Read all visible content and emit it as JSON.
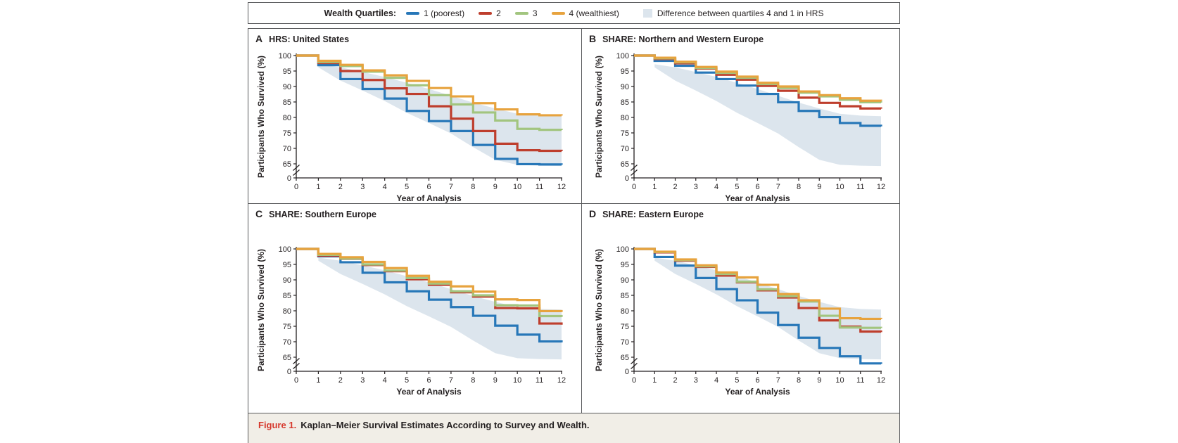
{
  "figure_caption": {
    "label": "Figure 1.",
    "text": "Kaplan–Meier Survival Estimates According to Survey and Wealth."
  },
  "legend": {
    "title": "Wealth Quartiles:",
    "items": [
      {
        "label": "1 (poorest)",
        "color": "#2777B8"
      },
      {
        "label": "2",
        "color": "#BE3E2D"
      },
      {
        "label": "3",
        "color": "#A2C57F"
      },
      {
        "label": "4 (wealthiest)",
        "color": "#E7A33E"
      }
    ],
    "band_item": {
      "label": "Difference between quartiles 4 and 1 in HRS",
      "color": "#DCE5ED"
    }
  },
  "axes": {
    "xlabel": "Year of Analysis",
    "ylabel": "Participants Who Survived (%)",
    "xticks": [
      0,
      1,
      2,
      3,
      4,
      5,
      6,
      7,
      8,
      9,
      10,
      11,
      12
    ],
    "yticks": [
      0,
      65,
      70,
      75,
      80,
      85,
      90,
      95,
      100
    ],
    "axis_break_between": [
      0,
      65
    ],
    "ylim": [
      0,
      100
    ]
  },
  "hrs_band": {
    "label": "Difference between quartiles 4 and 1 in HRS",
    "color": "#DCE5ED",
    "x": [
      1,
      2,
      3,
      4,
      5,
      6,
      7,
      8,
      9,
      10,
      11,
      12
    ],
    "upper": [
      97.2,
      96.2,
      94.7,
      93.1,
      91.2,
      89.2,
      87.0,
      84.8,
      82.9,
      81.2,
      80.6,
      80.4
    ],
    "lower": [
      96.2,
      91.9,
      88.7,
      85.3,
      81.5,
      78.2,
      74.8,
      70.4,
      66.3,
      64.7,
      64.4,
      64.3
    ]
  },
  "chart_data": [
    {
      "type": "line",
      "panel": "A",
      "title": "HRS: United States",
      "x": [
        0,
        1,
        2,
        3,
        4,
        5,
        6,
        7,
        8,
        9,
        10,
        11,
        12
      ],
      "series": [
        {
          "name": "1 (poorest)",
          "color": "#2777B8",
          "values": [
            100,
            96.9,
            92.4,
            89.2,
            86.1,
            82.1,
            78.8,
            75.6,
            71.1,
            66.6,
            64.9,
            64.8,
            64.7
          ]
        },
        {
          "name": "2",
          "color": "#BE3E2D",
          "values": [
            100,
            97.6,
            95.0,
            92.1,
            89.4,
            87.6,
            83.6,
            79.6,
            75.6,
            71.5,
            69.4,
            69.2,
            69.1
          ]
        },
        {
          "name": "3",
          "color": "#A2C57F",
          "values": [
            100,
            97.9,
            96.6,
            94.8,
            92.8,
            90.4,
            87.2,
            84.2,
            81.6,
            79.0,
            76.3,
            76.0,
            75.9
          ]
        },
        {
          "name": "4 (wealthiest)",
          "color": "#E7A33E",
          "values": [
            100,
            98.3,
            97.0,
            95.2,
            93.6,
            91.8,
            89.5,
            86.8,
            84.6,
            82.6,
            81.0,
            80.7,
            80.6
          ]
        }
      ]
    },
    {
      "type": "line",
      "panel": "B",
      "title": "SHARE: Northern and Western Europe",
      "x": [
        0,
        1,
        2,
        3,
        4,
        5,
        6,
        7,
        8,
        9,
        10,
        11,
        12
      ],
      "series": [
        {
          "name": "1 (poorest)",
          "color": "#2777B8",
          "values": [
            100,
            98.3,
            96.7,
            94.5,
            92.4,
            90.3,
            87.6,
            84.9,
            82.1,
            80.1,
            78.2,
            77.3,
            77.1
          ]
        },
        {
          "name": "2",
          "color": "#BE3E2D",
          "values": [
            100,
            98.9,
            97.5,
            95.8,
            93.8,
            92.2,
            90.2,
            88.6,
            86.4,
            84.7,
            83.6,
            82.9,
            82.8
          ]
        },
        {
          "name": "3",
          "color": "#A2C57F",
          "values": [
            100,
            99.1,
            97.8,
            96.0,
            94.4,
            92.8,
            90.8,
            89.5,
            88.0,
            86.8,
            85.7,
            84.9,
            84.8
          ]
        },
        {
          "name": "4 (wealthiest)",
          "color": "#E7A33E",
          "values": [
            100,
            99.3,
            98.0,
            96.3,
            94.8,
            93.2,
            91.2,
            90.0,
            88.4,
            87.2,
            86.2,
            85.4,
            85.3
          ]
        }
      ]
    },
    {
      "type": "line",
      "panel": "C",
      "title": "SHARE: Southern Europe",
      "x": [
        0,
        1,
        2,
        3,
        4,
        5,
        6,
        7,
        8,
        9,
        10,
        11,
        12
      ],
      "series": [
        {
          "name": "1 (poorest)",
          "color": "#2777B8",
          "values": [
            100,
            97.6,
            95.7,
            92.3,
            89.2,
            86.3,
            83.6,
            81.2,
            78.4,
            75.2,
            72.3,
            70.1,
            69.8
          ]
        },
        {
          "name": "2",
          "color": "#BE3E2D",
          "values": [
            100,
            97.8,
            96.8,
            94.8,
            92.8,
            90.2,
            88.4,
            86.0,
            84.6,
            80.9,
            80.8,
            75.9,
            75.5
          ]
        },
        {
          "name": "3",
          "color": "#A2C57F",
          "values": [
            100,
            98.1,
            96.9,
            95.0,
            93.0,
            90.6,
            88.8,
            86.3,
            85.0,
            81.8,
            81.7,
            78.3,
            78.0
          ]
        },
        {
          "name": "4 (wealthiest)",
          "color": "#E7A33E",
          "values": [
            100,
            98.4,
            97.3,
            95.8,
            93.8,
            91.3,
            89.4,
            87.9,
            86.2,
            83.7,
            83.5,
            79.9,
            79.6
          ]
        }
      ]
    },
    {
      "type": "line",
      "panel": "D",
      "title": "SHARE: Eastern Europe",
      "x": [
        0,
        1,
        2,
        3,
        4,
        5,
        6,
        7,
        8,
        9,
        10,
        11,
        12
      ],
      "series": [
        {
          "name": "1 (poorest)",
          "color": "#2777B8",
          "values": [
            100,
            97.4,
            94.6,
            90.6,
            87.0,
            83.4,
            79.4,
            75.4,
            71.3,
            68.0,
            65.3,
            63.0,
            62.8
          ]
        },
        {
          "name": "2",
          "color": "#BE3E2D",
          "values": [
            100,
            98.9,
            96.2,
            94.2,
            91.4,
            89.2,
            86.6,
            84.3,
            80.9,
            76.9,
            74.9,
            73.3,
            73.1
          ]
        },
        {
          "name": "3",
          "color": "#A2C57F",
          "values": [
            100,
            99.0,
            96.4,
            94.4,
            91.9,
            89.4,
            86.9,
            84.7,
            83.0,
            78.4,
            74.6,
            74.5,
            74.4
          ]
        },
        {
          "name": "4 (wealthiest)",
          "color": "#E7A33E",
          "values": [
            100,
            99.1,
            96.6,
            94.7,
            92.4,
            90.8,
            88.4,
            85.4,
            83.4,
            80.7,
            77.6,
            77.4,
            77.3
          ]
        }
      ]
    }
  ]
}
